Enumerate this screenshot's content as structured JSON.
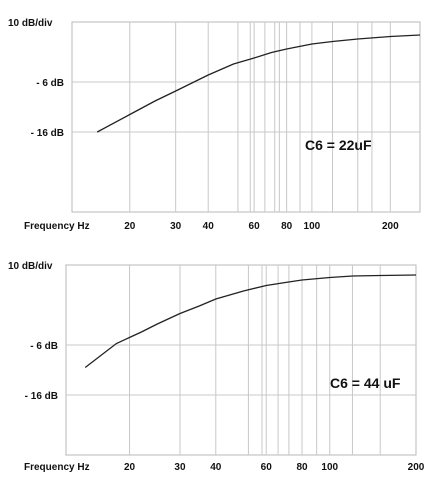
{
  "chart_data": [
    {
      "type": "line",
      "scale_label": "10 dB/div",
      "xlabel": "Frequency Hz",
      "x_scale": "log",
      "xlim": [
        12,
        260
      ],
      "ylim": [
        -32,
        6
      ],
      "x_ticks": [
        20,
        30,
        40,
        60,
        80,
        100,
        200
      ],
      "x_tick_labels": [
        "20",
        "30",
        "40",
        "60",
        "80",
        "100",
        "200"
      ],
      "y_ticks": [
        -6,
        -16
      ],
      "y_tick_labels": [
        "- 6 dB",
        "- 16 dB"
      ],
      "annotation": "C6 = 22uF",
      "series": [
        {
          "x": [
            15,
            20,
            25,
            30,
            40,
            50,
            60,
            70,
            80,
            100,
            120,
            150,
            200,
            260
          ],
          "y": [
            -16,
            -12.5,
            -9.8,
            -7.8,
            -4.6,
            -2.4,
            -1.2,
            -0.1,
            0.6,
            1.6,
            2.1,
            2.6,
            3.1,
            3.4
          ]
        }
      ],
      "grid": true
    },
    {
      "type": "line",
      "scale_label": "10 dB/div",
      "xlabel": "Frequency Hz",
      "x_scale": "log",
      "xlim": [
        12,
        200
      ],
      "ylim": [
        -28,
        10
      ],
      "x_ticks": [
        20,
        30,
        40,
        60,
        80,
        100,
        200
      ],
      "x_tick_labels": [
        "20",
        "30",
        "40",
        "60",
        "80",
        "100",
        "200"
      ],
      "y_ticks": [
        -6,
        -16
      ],
      "y_tick_labels": [
        "- 6 dB",
        "- 16 dB"
      ],
      "annotation": "C6 = 44 uF",
      "series": [
        {
          "x": [
            14,
            18,
            22,
            25,
            30,
            35,
            40,
            50,
            60,
            70,
            80,
            100,
            120,
            150,
            200
          ],
          "y": [
            -10.5,
            -5.7,
            -3.4,
            -1.8,
            0.3,
            1.8,
            3.2,
            4.8,
            5.9,
            6.5,
            7.0,
            7.5,
            7.8,
            7.9,
            8.0
          ]
        }
      ],
      "grid": true
    }
  ]
}
